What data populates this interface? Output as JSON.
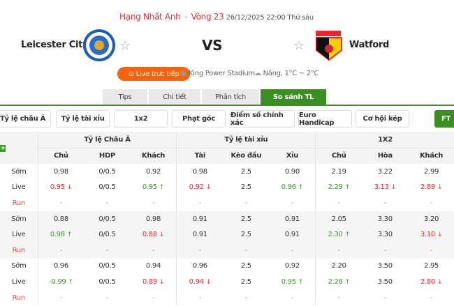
{
  "header": {
    "league": "Hạng Nhất Anh",
    "round": "Vòng 23",
    "datetime": "26/12/2025 22:00 Thứ sáu"
  },
  "match": {
    "home": "Leicester City",
    "away": "Watford",
    "vs": "VS",
    "live_label": "Live trực tiếp",
    "stadium": "King Power Stadium",
    "weather": "Nắng, 1°C ~ 2°C"
  },
  "colors": {
    "accent": "#3b8e22",
    "live": "#f7630c",
    "up": "#3b9a2a",
    "down": "#e8282e"
  },
  "tabs": [
    {
      "label": "Tips"
    },
    {
      "label": "Chi tiết"
    },
    {
      "label": "Phân tích"
    },
    {
      "label": "So sánh TL",
      "active": true
    }
  ],
  "filters": [
    {
      "label": "Tỷ lệ châu Á"
    },
    {
      "label": "Tỷ lệ tài xỉu"
    },
    {
      "label": "1x2"
    },
    {
      "label": "Phạt góc"
    },
    {
      "label": "Điểm số chính xác"
    },
    {
      "label": "Euro Handicap"
    },
    {
      "label": "Cơ hội kép"
    },
    {
      "label": "FT"
    }
  ],
  "table": {
    "groups": [
      "Tỷ lệ Châu Á",
      "Tỷ lệ tài xỉu",
      "1X2"
    ],
    "columns": [
      "Chủ",
      "HDP",
      "Khách",
      "Tài",
      "Kèo đầu",
      "Xỉu",
      "Chủ",
      "Hòa",
      "Khách"
    ],
    "row_labels": [
      "Sớm",
      "Live",
      "Run"
    ],
    "blocks": [
      [
        [
          "0.98",
          "0/0.5",
          "0.92",
          "0.98",
          "2.5",
          "0.90",
          "2.19",
          "3.22",
          "2.99"
        ],
        [
          [
            "0.95",
            "down"
          ],
          [
            "0/0.5",
            ""
          ],
          [
            "0.95",
            "up"
          ],
          [
            "0.92",
            "down"
          ],
          [
            "2.5",
            ""
          ],
          [
            "0.96",
            "up"
          ],
          [
            "2.29",
            "up"
          ],
          [
            "3.13",
            "down"
          ],
          [
            "2.89",
            "down"
          ]
        ],
        [
          "-",
          "-",
          "-",
          "-",
          "-",
          "-",
          "-",
          "-",
          "-"
        ]
      ],
      [
        [
          "0.88",
          "0/0.5",
          "0.98",
          "0.91",
          "2.5",
          "0.91",
          "2.05",
          "3.30",
          "3.20"
        ],
        [
          [
            "0.98",
            "up"
          ],
          [
            "0/0.5",
            ""
          ],
          [
            "0.88",
            "down"
          ],
          [
            "0.91",
            ""
          ],
          [
            "2.5",
            ""
          ],
          [
            "0.91",
            ""
          ],
          [
            "2.30",
            "up"
          ],
          [
            "3.30",
            ""
          ],
          [
            "3.10",
            "down"
          ]
        ],
        [
          "-",
          "-",
          "-",
          "-",
          "-",
          "-",
          "-",
          "-",
          "-"
        ]
      ],
      [
        [
          "0.96",
          "0/0.5",
          "0.94",
          "0.96",
          "2.5",
          "0.92",
          "2.20",
          "3.50",
          "2.95"
        ],
        [
          [
            "-0.99",
            "up"
          ],
          [
            "0/0.5",
            ""
          ],
          [
            "0.89",
            "down"
          ],
          [
            "0.94",
            "down"
          ],
          [
            "2.5",
            ""
          ],
          [
            "0.95",
            "up"
          ],
          [
            "2.28",
            "up"
          ],
          [
            "3.50",
            ""
          ],
          [
            "2.80",
            "down"
          ]
        ],
        [
          "-",
          "-",
          "-",
          "-",
          "-",
          "-",
          "-",
          "-",
          "-"
        ]
      ]
    ]
  }
}
